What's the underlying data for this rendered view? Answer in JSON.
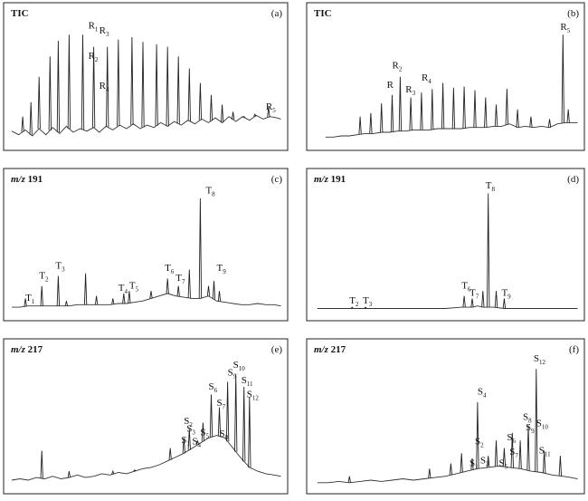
{
  "chart_data": [
    {
      "panel": "(a)",
      "type": "line",
      "title": "TIC",
      "x": [
        0.01,
        0.035,
        0.06,
        0.085,
        0.11,
        0.135,
        0.16,
        0.185,
        0.21,
        0.235,
        0.26,
        0.285,
        0.31,
        0.33,
        0.355,
        0.38,
        0.405,
        0.43,
        0.455,
        0.48,
        0.505,
        0.53,
        0.555,
        0.58,
        0.605,
        0.63,
        0.655,
        0.68,
        0.705,
        0.73,
        0.755,
        0.78,
        0.805,
        0.83,
        0.855,
        0.88,
        0.905,
        0.93,
        0.955,
        0.98,
        0.995
      ],
      "y": [
        0.1,
        0.07,
        0.11,
        0.06,
        0.12,
        0.07,
        0.13,
        0.08,
        0.14,
        0.09,
        0.12,
        0.1,
        0.13,
        0.09,
        0.14,
        0.11,
        0.15,
        0.12,
        0.16,
        0.12,
        0.15,
        0.13,
        0.17,
        0.14,
        0.18,
        0.15,
        0.19,
        0.16,
        0.2,
        0.17,
        0.21,
        0.17,
        0.22,
        0.18,
        0.22,
        0.19,
        0.23,
        0.2,
        0.22,
        0.21,
        0.2
      ],
      "peaks": [
        {
          "x": 0.05,
          "y": 0.22
        },
        {
          "x": 0.08,
          "y": 0.34
        },
        {
          "x": 0.11,
          "y": 0.55
        },
        {
          "x": 0.15,
          "y": 0.72
        },
        {
          "x": 0.18,
          "y": 0.85
        },
        {
          "x": 0.22,
          "y": 0.9
        },
        {
          "x": 0.27,
          "y": 0.9
        },
        {
          "x": 0.31,
          "y": 0.8
        },
        {
          "x": 0.36,
          "y": 0.8
        },
        {
          "x": 0.4,
          "y": 0.86
        },
        {
          "x": 0.45,
          "y": 0.88
        },
        {
          "x": 0.49,
          "y": 0.84
        },
        {
          "x": 0.54,
          "y": 0.82
        },
        {
          "x": 0.58,
          "y": 0.8
        },
        {
          "x": 0.62,
          "y": 0.72
        },
        {
          "x": 0.66,
          "y": 0.62
        },
        {
          "x": 0.7,
          "y": 0.5
        },
        {
          "x": 0.74,
          "y": 0.4
        },
        {
          "x": 0.78,
          "y": 0.32
        },
        {
          "x": 0.82,
          "y": 0.26
        },
        {
          "x": 0.86,
          "y": 0.22
        },
        {
          "x": 0.9,
          "y": 0.24
        },
        {
          "x": 0.95,
          "y": 0.3
        }
      ],
      "labels": [
        {
          "text": "R1",
          "x": 0.29,
          "y": 0.95
        },
        {
          "text": "R3",
          "x": 0.33,
          "y": 0.91
        },
        {
          "text": "R2",
          "x": 0.29,
          "y": 0.7
        },
        {
          "text": "R4",
          "x": 0.33,
          "y": 0.45
        },
        {
          "text": "R5",
          "x": 0.94,
          "y": 0.28
        }
      ]
    },
    {
      "panel": "(b)",
      "type": "line",
      "title": "TIC",
      "x": [
        0.05,
        0.08,
        0.11,
        0.14,
        0.17,
        0.2,
        0.23,
        0.26,
        0.29,
        0.32,
        0.35,
        0.38,
        0.41,
        0.44,
        0.47,
        0.5,
        0.53,
        0.56,
        0.59,
        0.62,
        0.65,
        0.68,
        0.71,
        0.74,
        0.77,
        0.8,
        0.83,
        0.86,
        0.89,
        0.92,
        0.95,
        0.98,
        0.995
      ],
      "y": [
        0.05,
        0.05,
        0.06,
        0.06,
        0.07,
        0.08,
        0.08,
        0.09,
        0.09,
        0.1,
        0.1,
        0.11,
        0.11,
        0.11,
        0.12,
        0.12,
        0.12,
        0.12,
        0.13,
        0.13,
        0.13,
        0.14,
        0.14,
        0.16,
        0.13,
        0.14,
        0.13,
        0.14,
        0.13,
        0.16,
        0.17,
        0.17,
        0.17
      ],
      "peaks": [
        {
          "x": 0.18,
          "y": 0.22
        },
        {
          "x": 0.22,
          "y": 0.25
        },
        {
          "x": 0.26,
          "y": 0.33
        },
        {
          "x": 0.3,
          "y": 0.4
        },
        {
          "x": 0.33,
          "y": 0.55
        },
        {
          "x": 0.37,
          "y": 0.38
        },
        {
          "x": 0.41,
          "y": 0.42
        },
        {
          "x": 0.45,
          "y": 0.45
        },
        {
          "x": 0.49,
          "y": 0.5
        },
        {
          "x": 0.53,
          "y": 0.46
        },
        {
          "x": 0.57,
          "y": 0.47
        },
        {
          "x": 0.61,
          "y": 0.44
        },
        {
          "x": 0.65,
          "y": 0.38
        },
        {
          "x": 0.69,
          "y": 0.32
        },
        {
          "x": 0.73,
          "y": 0.45
        },
        {
          "x": 0.77,
          "y": 0.28
        },
        {
          "x": 0.82,
          "y": 0.22
        },
        {
          "x": 0.89,
          "y": 0.2
        },
        {
          "x": 0.94,
          "y": 0.9
        },
        {
          "x": 0.96,
          "y": 0.28
        }
      ],
      "labels": [
        {
          "text": "R2",
          "x": 0.3,
          "y": 0.62
        },
        {
          "text": "R",
          "x": 0.28,
          "y": 0.46
        },
        {
          "text": "R3",
          "x": 0.35,
          "y": 0.42
        },
        {
          "text": "R4",
          "x": 0.41,
          "y": 0.52
        },
        {
          "text": "R5",
          "x": 0.93,
          "y": 0.94
        }
      ]
    },
    {
      "panel": "(c)",
      "type": "line",
      "title": "m/z 191",
      "x": [
        0.01,
        0.04,
        0.07,
        0.1,
        0.13,
        0.16,
        0.19,
        0.22,
        0.25,
        0.28,
        0.31,
        0.34,
        0.37,
        0.4,
        0.43,
        0.46,
        0.49,
        0.52,
        0.55,
        0.58,
        0.61,
        0.64,
        0.67,
        0.7,
        0.73,
        0.76,
        0.79,
        0.82,
        0.85,
        0.88,
        0.91,
        0.94,
        0.97,
        0.995
      ],
      "y": [
        0.05,
        0.05,
        0.06,
        0.06,
        0.06,
        0.06,
        0.06,
        0.06,
        0.07,
        0.07,
        0.07,
        0.07,
        0.07,
        0.08,
        0.08,
        0.09,
        0.1,
        0.12,
        0.14,
        0.16,
        0.14,
        0.13,
        0.12,
        0.12,
        0.14,
        0.1,
        0.09,
        0.08,
        0.07,
        0.07,
        0.08,
        0.07,
        0.07,
        0.06
      ],
      "peaks": [
        {
          "x": 0.06,
          "y": 0.12
        },
        {
          "x": 0.12,
          "y": 0.22
        },
        {
          "x": 0.18,
          "y": 0.3
        },
        {
          "x": 0.21,
          "y": 0.1
        },
        {
          "x": 0.28,
          "y": 0.32
        },
        {
          "x": 0.32,
          "y": 0.14
        },
        {
          "x": 0.38,
          "y": 0.12
        },
        {
          "x": 0.42,
          "y": 0.16
        },
        {
          "x": 0.44,
          "y": 0.18
        },
        {
          "x": 0.52,
          "y": 0.18
        },
        {
          "x": 0.58,
          "y": 0.28
        },
        {
          "x": 0.62,
          "y": 0.22
        },
        {
          "x": 0.66,
          "y": 0.35
        },
        {
          "x": 0.7,
          "y": 0.92
        },
        {
          "x": 0.73,
          "y": 0.22
        },
        {
          "x": 0.75,
          "y": 0.26
        },
        {
          "x": 0.77,
          "y": 0.18
        }
      ],
      "labels": [
        {
          "text": "T1",
          "x": 0.06,
          "y": 0.1
        },
        {
          "text": "T2",
          "x": 0.11,
          "y": 0.28
        },
        {
          "text": "T3",
          "x": 0.17,
          "y": 0.36
        },
        {
          "text": "T4",
          "x": 0.4,
          "y": 0.18
        },
        {
          "text": "T5",
          "x": 0.44,
          "y": 0.2
        },
        {
          "text": "T6",
          "x": 0.57,
          "y": 0.34
        },
        {
          "text": "T7",
          "x": 0.61,
          "y": 0.26
        },
        {
          "text": "T8",
          "x": 0.72,
          "y": 0.96
        },
        {
          "text": "T9",
          "x": 0.76,
          "y": 0.34
        }
      ]
    },
    {
      "panel": "(d)",
      "type": "line",
      "title": "m/z 191",
      "x": [
        0.02,
        0.08,
        0.14,
        0.2,
        0.26,
        0.32,
        0.38,
        0.44,
        0.5,
        0.56,
        0.6,
        0.62,
        0.64,
        0.68,
        0.72,
        0.76,
        0.8,
        0.84,
        0.88,
        0.92,
        0.96,
        0.995
      ],
      "y": [
        0.04,
        0.04,
        0.04,
        0.04,
        0.04,
        0.04,
        0.04,
        0.04,
        0.04,
        0.05,
        0.05,
        0.06,
        0.05,
        0.05,
        0.04,
        0.04,
        0.04,
        0.04,
        0.04,
        0.04,
        0.04,
        0.04
      ],
      "peaks": [
        {
          "x": 0.15,
          "y": 0.05
        },
        {
          "x": 0.2,
          "y": 0.05
        },
        {
          "x": 0.57,
          "y": 0.14
        },
        {
          "x": 0.6,
          "y": 0.12
        },
        {
          "x": 0.64,
          "y": 0.18
        },
        {
          "x": 0.66,
          "y": 0.96
        },
        {
          "x": 0.69,
          "y": 0.18
        },
        {
          "x": 0.72,
          "y": 0.12
        }
      ],
      "labels": [
        {
          "text": "T2",
          "x": 0.14,
          "y": 0.08
        },
        {
          "text": "T3",
          "x": 0.19,
          "y": 0.08
        },
        {
          "text": "T6",
          "x": 0.56,
          "y": 0.2
        },
        {
          "text": "T7",
          "x": 0.59,
          "y": 0.14
        },
        {
          "text": "T8",
          "x": 0.65,
          "y": 1.0
        },
        {
          "text": "T9",
          "x": 0.71,
          "y": 0.14
        }
      ]
    },
    {
      "panel": "(e)",
      "type": "line",
      "title": "m/z  217",
      "x": [
        0.01,
        0.04,
        0.07,
        0.1,
        0.13,
        0.16,
        0.19,
        0.22,
        0.25,
        0.28,
        0.31,
        0.34,
        0.37,
        0.4,
        0.43,
        0.46,
        0.49,
        0.52,
        0.55,
        0.58,
        0.61,
        0.64,
        0.67,
        0.7,
        0.73,
        0.76,
        0.79,
        0.82,
        0.85,
        0.88,
        0.91,
        0.94,
        0.97,
        0.995
      ],
      "y": [
        0.05,
        0.06,
        0.05,
        0.07,
        0.06,
        0.08,
        0.06,
        0.07,
        0.09,
        0.07,
        0.08,
        0.1,
        0.09,
        0.11,
        0.1,
        0.12,
        0.14,
        0.15,
        0.17,
        0.2,
        0.23,
        0.26,
        0.3,
        0.34,
        0.38,
        0.4,
        0.38,
        0.3,
        0.22,
        0.15,
        0.12,
        0.1,
        0.09,
        0.08
      ],
      "peaks": [
        {
          "x": 0.12,
          "y": 0.28
        },
        {
          "x": 0.22,
          "y": 0.12
        },
        {
          "x": 0.38,
          "y": 0.12
        },
        {
          "x": 0.46,
          "y": 0.13
        },
        {
          "x": 0.59,
          "y": 0.3
        },
        {
          "x": 0.64,
          "y": 0.38
        },
        {
          "x": 0.66,
          "y": 0.45
        },
        {
          "x": 0.69,
          "y": 0.36
        },
        {
          "x": 0.71,
          "y": 0.5
        },
        {
          "x": 0.74,
          "y": 0.72
        },
        {
          "x": 0.77,
          "y": 0.62
        },
        {
          "x": 0.8,
          "y": 0.82
        },
        {
          "x": 0.83,
          "y": 0.88
        },
        {
          "x": 0.86,
          "y": 0.78
        },
        {
          "x": 0.88,
          "y": 0.7
        }
      ],
      "labels": [
        {
          "text": "S1",
          "x": 0.63,
          "y": 0.34
        },
        {
          "text": "S2",
          "x": 0.64,
          "y": 0.49
        },
        {
          "text": "S3",
          "x": 0.65,
          "y": 0.43
        },
        {
          "text": "S4",
          "x": 0.67,
          "y": 0.33
        },
        {
          "text": "S5",
          "x": 0.7,
          "y": 0.4
        },
        {
          "text": "S6",
          "x": 0.73,
          "y": 0.76
        },
        {
          "text": "S7",
          "x": 0.76,
          "y": 0.63
        },
        {
          "text": "S8",
          "x": 0.77,
          "y": 0.39
        },
        {
          "text": "S9",
          "x": 0.8,
          "y": 0.87
        },
        {
          "text": "S10",
          "x": 0.82,
          "y": 0.93
        },
        {
          "text": "S11",
          "x": 0.85,
          "y": 0.81
        },
        {
          "text": "S12",
          "x": 0.87,
          "y": 0.7
        }
      ]
    },
    {
      "panel": "(f)",
      "type": "line",
      "title": "m/z 217",
      "x": [
        0.02,
        0.06,
        0.1,
        0.14,
        0.18,
        0.22,
        0.26,
        0.3,
        0.34,
        0.38,
        0.42,
        0.46,
        0.5,
        0.54,
        0.58,
        0.62,
        0.66,
        0.7,
        0.74,
        0.78,
        0.82,
        0.86,
        0.9,
        0.94,
        0.97,
        0.995
      ],
      "y": [
        0.03,
        0.03,
        0.04,
        0.03,
        0.04,
        0.05,
        0.04,
        0.05,
        0.06,
        0.05,
        0.06,
        0.07,
        0.08,
        0.1,
        0.12,
        0.14,
        0.15,
        0.16,
        0.15,
        0.14,
        0.12,
        0.11,
        0.09,
        0.08,
        0.07,
        0.06
      ],
      "peaks": [
        {
          "x": 0.14,
          "y": 0.08
        },
        {
          "x": 0.44,
          "y": 0.14
        },
        {
          "x": 0.52,
          "y": 0.18
        },
        {
          "x": 0.56,
          "y": 0.26
        },
        {
          "x": 0.6,
          "y": 0.22
        },
        {
          "x": 0.62,
          "y": 0.66
        },
        {
          "x": 0.66,
          "y": 0.24
        },
        {
          "x": 0.69,
          "y": 0.36
        },
        {
          "x": 0.72,
          "y": 0.3
        },
        {
          "x": 0.75,
          "y": 0.42
        },
        {
          "x": 0.78,
          "y": 0.36
        },
        {
          "x": 0.81,
          "y": 0.48
        },
        {
          "x": 0.84,
          "y": 0.92
        },
        {
          "x": 0.87,
          "y": 0.28
        },
        {
          "x": 0.93,
          "y": 0.24
        }
      ],
      "labels": [
        {
          "text": "S1",
          "x": 0.59,
          "y": 0.16
        },
        {
          "text": "S2",
          "x": 0.61,
          "y": 0.33
        },
        {
          "text": "S3",
          "x": 0.63,
          "y": 0.18
        },
        {
          "text": "S4",
          "x": 0.62,
          "y": 0.72
        },
        {
          "text": "S5",
          "x": 0.7,
          "y": 0.16
        },
        {
          "text": "S6",
          "x": 0.73,
          "y": 0.36
        },
        {
          "text": "S7",
          "x": 0.74,
          "y": 0.25
        },
        {
          "text": "S8",
          "x": 0.79,
          "y": 0.52
        },
        {
          "text": "S9",
          "x": 0.8,
          "y": 0.44
        },
        {
          "text": "S10",
          "x": 0.84,
          "y": 0.47
        },
        {
          "text": "S11",
          "x": 0.85,
          "y": 0.26
        },
        {
          "text": "S12",
          "x": 0.83,
          "y": 0.98
        }
      ]
    }
  ]
}
